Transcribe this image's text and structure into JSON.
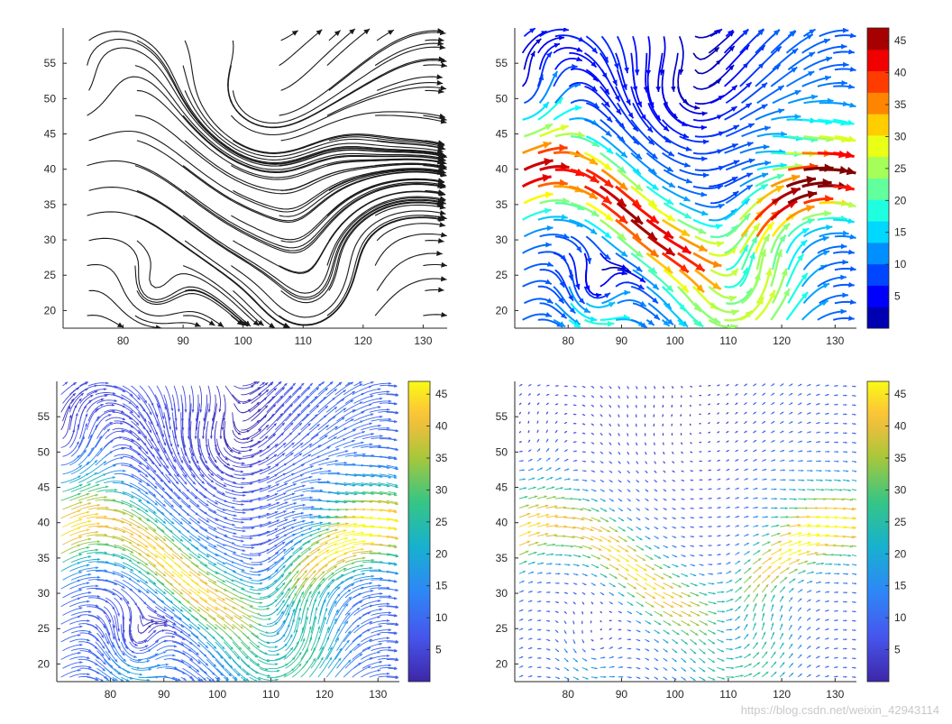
{
  "figure": {
    "watermark": "https://blog.csdn.net/weixin_42943114"
  },
  "chart_data": [
    {
      "type": "streamline",
      "style": "plain-black",
      "title": "",
      "xlabel": "",
      "ylabel": "",
      "xlim": [
        70,
        134
      ],
      "ylim": [
        17.5,
        60
      ],
      "xticks": [
        80,
        90,
        100,
        110,
        120,
        130
      ],
      "yticks": [
        20,
        25,
        30,
        35,
        40,
        45,
        50,
        55
      ],
      "colorbar": null,
      "grid": false
    },
    {
      "type": "streamline",
      "style": "colored-arrows",
      "colormap": "jet",
      "title": "",
      "xlabel": "",
      "ylabel": "",
      "xlim": [
        70,
        134
      ],
      "ylim": [
        17.5,
        60
      ],
      "xticks": [
        80,
        90,
        100,
        110,
        120,
        130
      ],
      "yticks": [
        20,
        25,
        30,
        35,
        40,
        45,
        50,
        55
      ],
      "colorbar": {
        "range": [
          0,
          47
        ],
        "ticks": [
          5,
          10,
          15,
          20,
          25,
          30,
          35,
          40,
          45
        ],
        "levels": 14
      },
      "grid": false
    },
    {
      "type": "streamline",
      "style": "dense-colored",
      "colormap": "parula",
      "title": "",
      "xlabel": "",
      "ylabel": "",
      "xlim": [
        70,
        134
      ],
      "ylim": [
        17.5,
        60
      ],
      "xticks": [
        80,
        90,
        100,
        110,
        120,
        130
      ],
      "yticks": [
        20,
        25,
        30,
        35,
        40,
        45,
        50,
        55
      ],
      "colorbar": {
        "range": [
          0,
          47
        ],
        "ticks": [
          5,
          10,
          15,
          20,
          25,
          30,
          35,
          40,
          45
        ],
        "levels": 0
      },
      "grid": false
    },
    {
      "type": "quiver",
      "style": "colored-quiver",
      "colormap": "parula",
      "title": "",
      "xlabel": "",
      "ylabel": "",
      "xlim": [
        70,
        134
      ],
      "ylim": [
        17.5,
        60
      ],
      "xticks": [
        80,
        90,
        100,
        110,
        120,
        130
      ],
      "yticks": [
        20,
        25,
        30,
        35,
        40,
        45,
        50,
        55
      ],
      "colorbar": {
        "range": [
          0,
          47
        ],
        "ticks": [
          5,
          10,
          15,
          20,
          25,
          30,
          35,
          40,
          45
        ],
        "levels": 0
      },
      "grid": false
    }
  ]
}
